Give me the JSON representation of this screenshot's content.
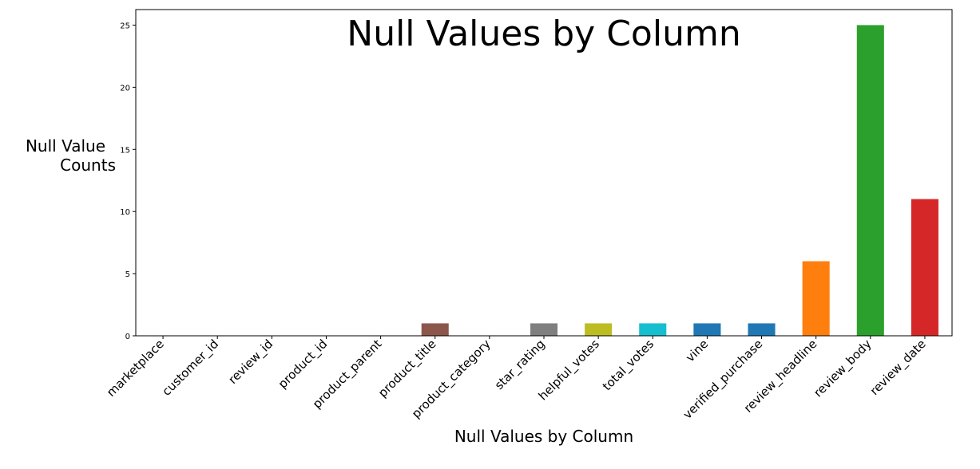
{
  "chart_data": {
    "type": "bar",
    "title": "Null Values by Column",
    "xlabel": "Null Values by Column",
    "ylabel": [
      "Null Value",
      "Counts"
    ],
    "categories": [
      "marketplace",
      "customer_id",
      "review_id",
      "product_id",
      "product_parent",
      "product_title",
      "product_category",
      "star_rating",
      "helpful_votes",
      "total_votes",
      "vine",
      "verified_purchase",
      "review_headline",
      "review_body",
      "review_date"
    ],
    "values": [
      0,
      0,
      0,
      0,
      0,
      1,
      0,
      1,
      1,
      1,
      1,
      1,
      6,
      25,
      11
    ],
    "colors": [
      "#1f77b4",
      "#ff7f0e",
      "#2ca02c",
      "#d62728",
      "#9467bd",
      "#8c564b",
      "#e377c2",
      "#7f7f7f",
      "#bcbd22",
      "#17becf",
      "#1f77b4",
      "#1f77b4",
      "#ff7f0e",
      "#2ca02c",
      "#d62728"
    ],
    "ylim": [
      0,
      26.25
    ],
    "yticks": [
      0,
      5,
      10,
      15,
      20,
      25
    ],
    "grid": false,
    "legend": "none"
  }
}
